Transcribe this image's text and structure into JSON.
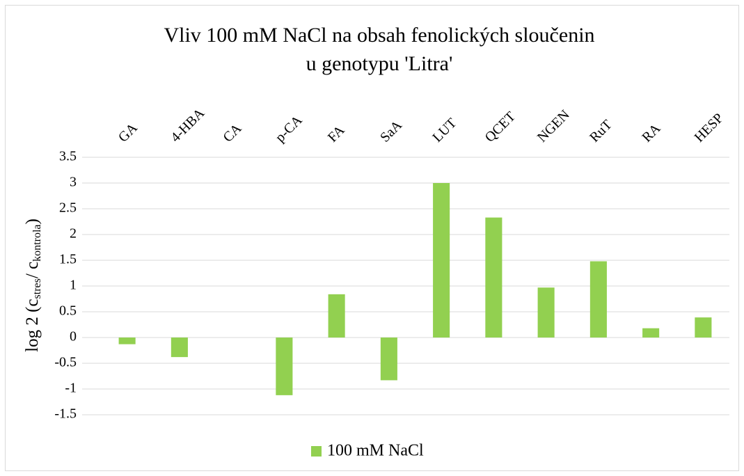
{
  "chart_data": {
    "type": "bar",
    "title": [
      "Vliv 100 mM NaCl na obsah fenolických sloučenin",
      "u genotypu 'Litra'"
    ],
    "y_label": [
      "log 2 (c",
      "stres",
      "/ c",
      "kontrola",
      ")"
    ],
    "categories": [
      "GA",
      "4-HBA",
      "CA",
      "p-CA",
      "FA",
      "SaA",
      "LUT",
      "QCET",
      "NGEN",
      "RuT",
      "RA",
      "HESP"
    ],
    "series": [
      {
        "name": "100 mM NaCl",
        "color": "#92d050",
        "values": [
          -0.13,
          -0.38,
          0,
          -1.12,
          0.84,
          -0.83,
          3.0,
          2.33,
          0.97,
          1.48,
          0.18,
          0.39
        ]
      }
    ],
    "ylim": [
      -1.5,
      3.5
    ],
    "yticks": [
      -1.5,
      -1,
      -0.5,
      0,
      0.5,
      1,
      1.5,
      2,
      2.5,
      3,
      3.5
    ],
    "grid": true,
    "legend": "bottom"
  }
}
